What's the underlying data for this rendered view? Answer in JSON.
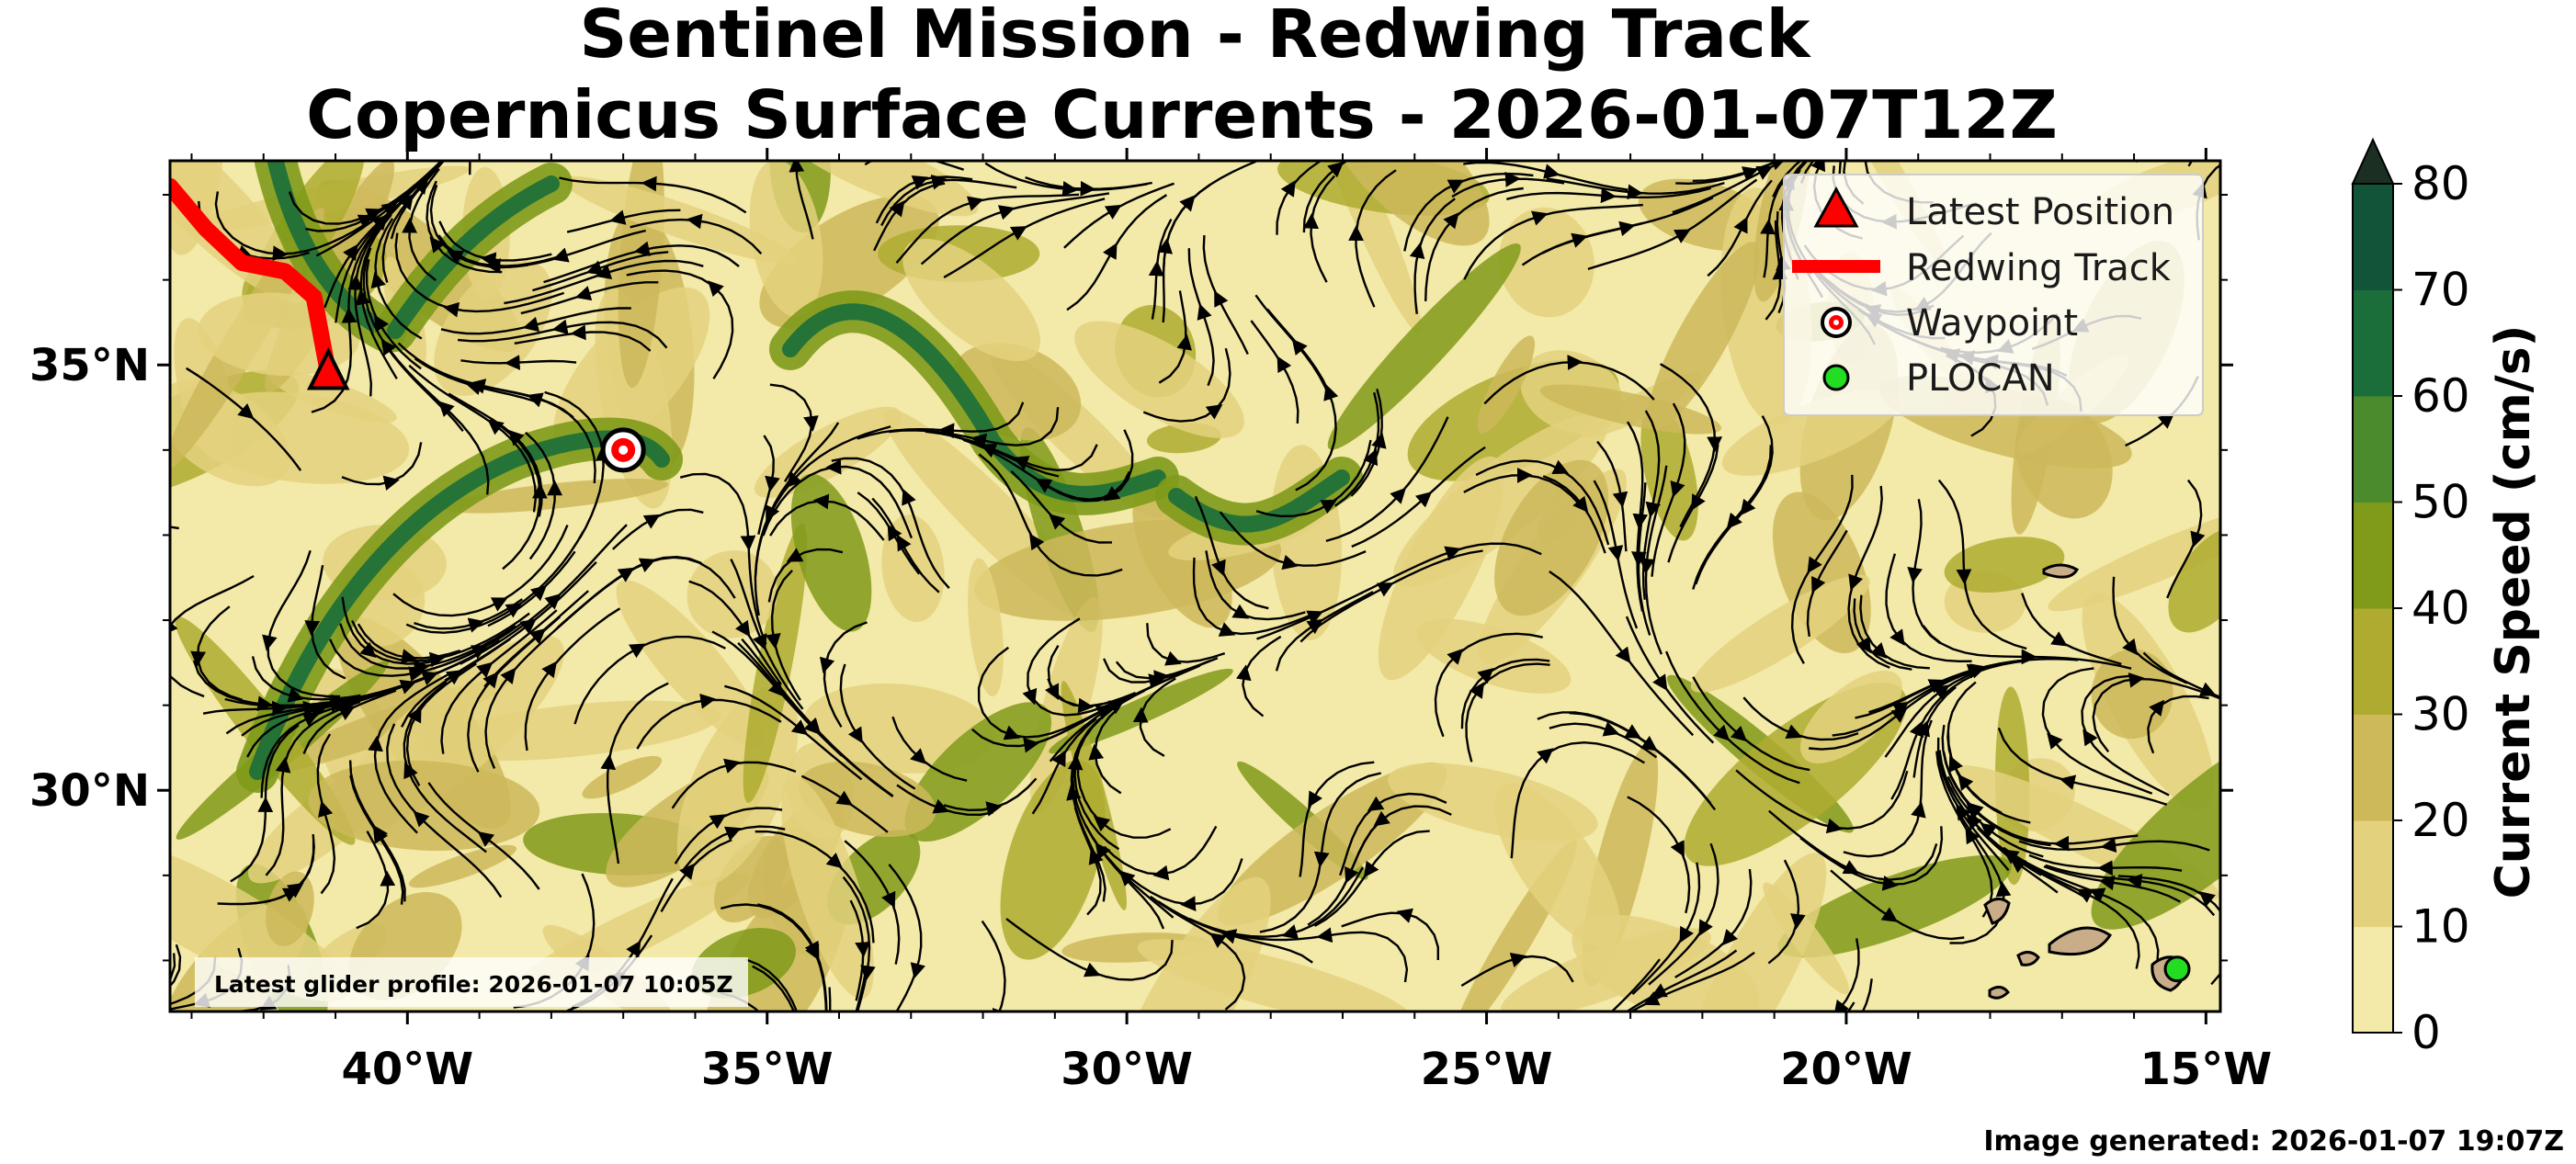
{
  "title": {
    "line1": "Sentinel Mission - Redwing Track",
    "line2": "Copernicus Surface Currents - 2026-01-07T12Z"
  },
  "colorbar": {
    "label": "Current Speed (cm/s)",
    "ticks": [
      "0",
      "10",
      "20",
      "30",
      "40",
      "50",
      "60",
      "70",
      "80"
    ],
    "colors": [
      "#f3e9a8",
      "#e3d17e",
      "#cdb95a",
      "#aeab30",
      "#809a1a",
      "#4c8a2e",
      "#1b6e3a",
      "#11543a",
      "#1b2f22"
    ],
    "extend": "max"
  },
  "legend": {
    "items": [
      {
        "label": "Latest Position",
        "kind": "triangle",
        "color": "#ff0000"
      },
      {
        "label": "Redwing Track",
        "kind": "line",
        "color": "#ff0000"
      },
      {
        "label": "Waypoint",
        "kind": "target",
        "color": "#ff0000"
      },
      {
        "label": "PLOCAN",
        "kind": "dot",
        "color": "#22dd22"
      }
    ]
  },
  "axes": {
    "lon_range": [
      -43.3,
      -14.8
    ],
    "lat_range": [
      27.4,
      37.4
    ],
    "x_ticks": [
      {
        "lon": -40,
        "label": "40°W"
      },
      {
        "lon": -35,
        "label": "35°W"
      },
      {
        "lon": -30,
        "label": "30°W"
      },
      {
        "lon": -25,
        "label": "25°W"
      },
      {
        "lon": -20,
        "label": "20°W"
      },
      {
        "lon": -15,
        "label": "15°W"
      }
    ],
    "y_ticks": [
      {
        "lat": 35,
        "label": "35°N"
      },
      {
        "lat": 30,
        "label": "30°N"
      }
    ]
  },
  "glider_note": "Latest glider profile: 2026-01-07 10:05Z",
  "generated_note": "Image generated: 2026-01-07 19:07Z",
  "markers": {
    "latest_position": {
      "lon": -41.1,
      "lat": 34.9
    },
    "waypoint": {
      "lon": -37.0,
      "lat": 34.0
    },
    "plocan": {
      "lon": -15.4,
      "lat": 27.9
    },
    "track": [
      [
        -43.3,
        37.1
      ],
      [
        -42.8,
        36.6
      ],
      [
        -42.3,
        36.2
      ],
      [
        -41.7,
        36.1
      ],
      [
        -41.3,
        35.8
      ],
      [
        -41.1,
        34.9
      ]
    ]
  },
  "chart_data": {
    "type": "map",
    "title": "Sentinel Mission - Redwing Track / Copernicus Surface Currents - 2026-01-07T12Z",
    "field": "surface current speed (cm/s), filled contours with streamlines",
    "speed_range": [
      0,
      80
    ],
    "extent": {
      "lon": [
        -43.3,
        -14.8
      ],
      "lat": [
        27.4,
        37.4
      ]
    }
  }
}
